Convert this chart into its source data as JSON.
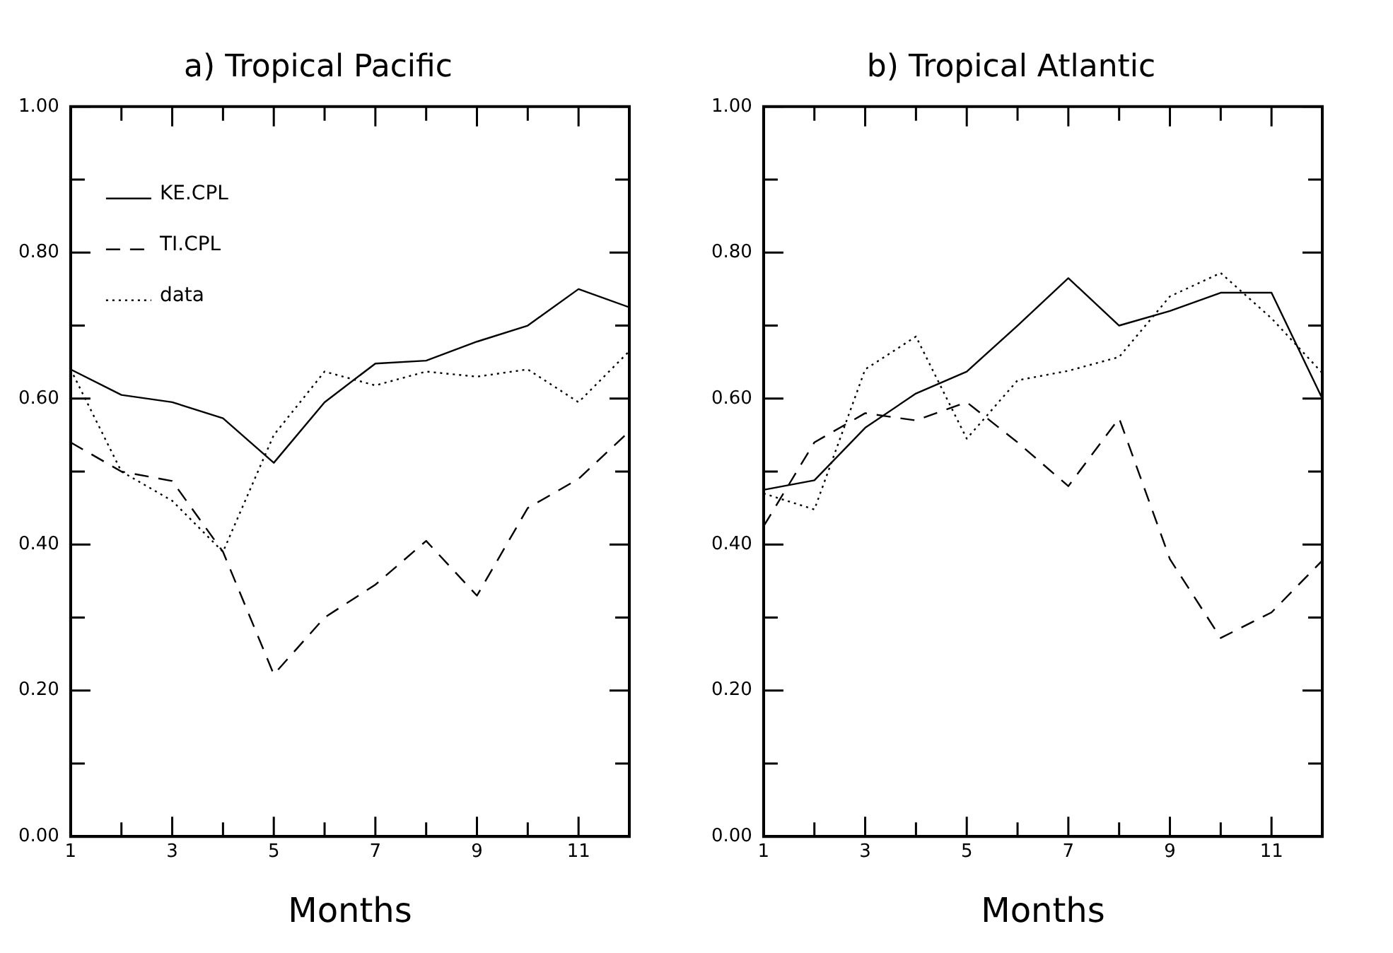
{
  "chart_data": [
    {
      "type": "line",
      "title": "a) Tropical Pacific",
      "xlabel": "Months",
      "x": [
        1,
        2,
        3,
        4,
        5,
        6,
        7,
        8,
        9,
        10,
        11,
        12
      ],
      "series": [
        {
          "name": "KE.CPL",
          "color": "#000000",
          "line_style": "solid",
          "values": [
            0.64,
            0.605,
            0.595,
            0.573,
            0.512,
            0.595,
            0.648,
            0.652,
            0.678,
            0.7,
            0.75,
            0.725
          ]
        },
        {
          "name": "TI.CPL",
          "color": "#000000",
          "line_style": "dashed",
          "values": [
            0.54,
            0.5,
            0.487,
            0.39,
            0.222,
            0.3,
            0.345,
            0.405,
            0.33,
            0.45,
            0.49,
            0.555
          ]
        },
        {
          "name": "data",
          "color": "#000000",
          "line_style": "dotted",
          "values": [
            0.64,
            0.5,
            0.46,
            0.39,
            0.55,
            0.637,
            0.618,
            0.637,
            0.63,
            0.64,
            0.595,
            0.665
          ]
        }
      ],
      "xlim": [
        1,
        12
      ],
      "xticks": [
        1,
        {
          "value": 2,
          "label": null
        },
        3,
        {
          "value": 4,
          "label": null
        },
        5,
        {
          "value": 6,
          "label": null
        },
        7,
        {
          "value": 8,
          "label": null
        },
        9,
        {
          "value": 10,
          "label": null
        },
        11,
        {
          "value": 12,
          "label": null
        }
      ],
      "ylim": [
        0,
        1
      ],
      "yticks": [
        {
          "value": 0,
          "label": "0.00"
        },
        {
          "value": 0.1,
          "label": null
        },
        {
          "value": 0.2,
          "label": "0.20"
        },
        {
          "value": 0.3,
          "label": null
        },
        {
          "value": 0.4,
          "label": "0.40"
        },
        {
          "value": 0.5,
          "label": null
        },
        {
          "value": 0.6,
          "label": "0.60"
        },
        {
          "value": 0.7,
          "label": null
        },
        {
          "value": 0.8,
          "label": "0.80"
        },
        {
          "value": 0.9,
          "label": null
        },
        {
          "value": 1,
          "label": "1.00"
        }
      ],
      "grid": false,
      "legend": "top left",
      "marker": "none"
    },
    {
      "type": "line",
      "title": "b) Tropical Atlantic",
      "xlabel": "Months",
      "x": [
        1,
        2,
        3,
        4,
        5,
        6,
        7,
        8,
        9,
        10,
        11,
        12
      ],
      "series": [
        {
          "color": "#000000",
          "line_style": "solid",
          "values": [
            0.475,
            0.488,
            0.56,
            0.607,
            0.637,
            0.7,
            0.765,
            0.7,
            0.72,
            0.745,
            0.745,
            0.6
          ]
        },
        {
          "color": "#000000",
          "line_style": "dashed",
          "values": [
            0.425,
            0.54,
            0.58,
            0.57,
            0.595,
            0.54,
            0.48,
            0.573,
            0.38,
            0.272,
            0.307,
            0.378
          ]
        },
        {
          "color": "#000000",
          "line_style": "dotted",
          "values": [
            0.47,
            0.448,
            0.64,
            0.685,
            0.545,
            0.625,
            0.638,
            0.657,
            0.74,
            0.772,
            0.71,
            0.635
          ]
        }
      ],
      "xlim": [
        1,
        12
      ],
      "xticks": [
        1,
        {
          "value": 2,
          "label": null
        },
        3,
        {
          "value": 4,
          "label": null
        },
        5,
        {
          "value": 6,
          "label": null
        },
        7,
        {
          "value": 8,
          "label": null
        },
        9,
        {
          "value": 10,
          "label": null
        },
        11,
        {
          "value": 12,
          "label": null
        }
      ],
      "ylim": [
        0,
        1
      ],
      "yticks": [
        {
          "value": 0,
          "label": "0.00"
        },
        {
          "value": 0.1,
          "label": null
        },
        {
          "value": 0.2,
          "label": "0.20"
        },
        {
          "value": 0.3,
          "label": null
        },
        {
          "value": 0.4,
          "label": "0.40"
        },
        {
          "value": 0.5,
          "label": null
        },
        {
          "value": 0.6,
          "label": "0.60"
        },
        {
          "value": 0.7,
          "label": null
        },
        {
          "value": 0.8,
          "label": "0.80"
        },
        {
          "value": 0.9,
          "label": null
        },
        {
          "value": 1,
          "label": "1.00"
        }
      ],
      "grid": false,
      "legend": false,
      "marker": "none"
    }
  ]
}
